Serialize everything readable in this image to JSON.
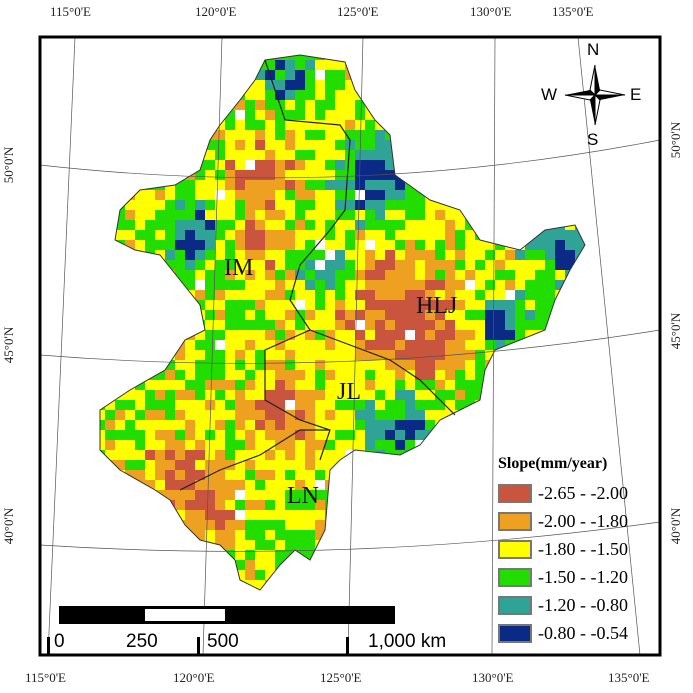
{
  "map": {
    "top_lon_labels": [
      "115°0'E",
      "120°0'E",
      "125°0'E",
      "130°0'E",
      "135°0'E"
    ],
    "bottom_lon_labels": [
      "115°0'E",
      "120°0'E",
      "125°0'E",
      "130°0'E",
      "135°0'E"
    ],
    "left_lat_labels": [
      "50°0'N",
      "45°0'N",
      "40°0'N"
    ],
    "right_lat_labels": [
      "50°0'N",
      "45°0'N",
      "40°0'N"
    ],
    "provinces": [
      "IM",
      "HLJ",
      "JL",
      "LN"
    ]
  },
  "compass": {
    "n": "N",
    "s": "S",
    "e": "E",
    "w": "W"
  },
  "scale_bar": {
    "labels": [
      "0",
      "250",
      "500",
      "1,000 km"
    ]
  },
  "legend": {
    "title": "Slope(mm/year)",
    "items": [
      {
        "label": "-2.65 - -2.00",
        "color": "#c9553f"
      },
      {
        "label": "-2.00 - -1.80",
        "color": "#eea021"
      },
      {
        "label": "-1.80 - -1.50",
        "color": "#ffff00"
      },
      {
        "label": "-1.50 - -1.20",
        "color": "#22dd00"
      },
      {
        "label": "-1.20 - -0.80",
        "color": "#2fa396"
      },
      {
        "label": "-0.80 - -0.54",
        "color": "#0b2a85"
      }
    ]
  }
}
